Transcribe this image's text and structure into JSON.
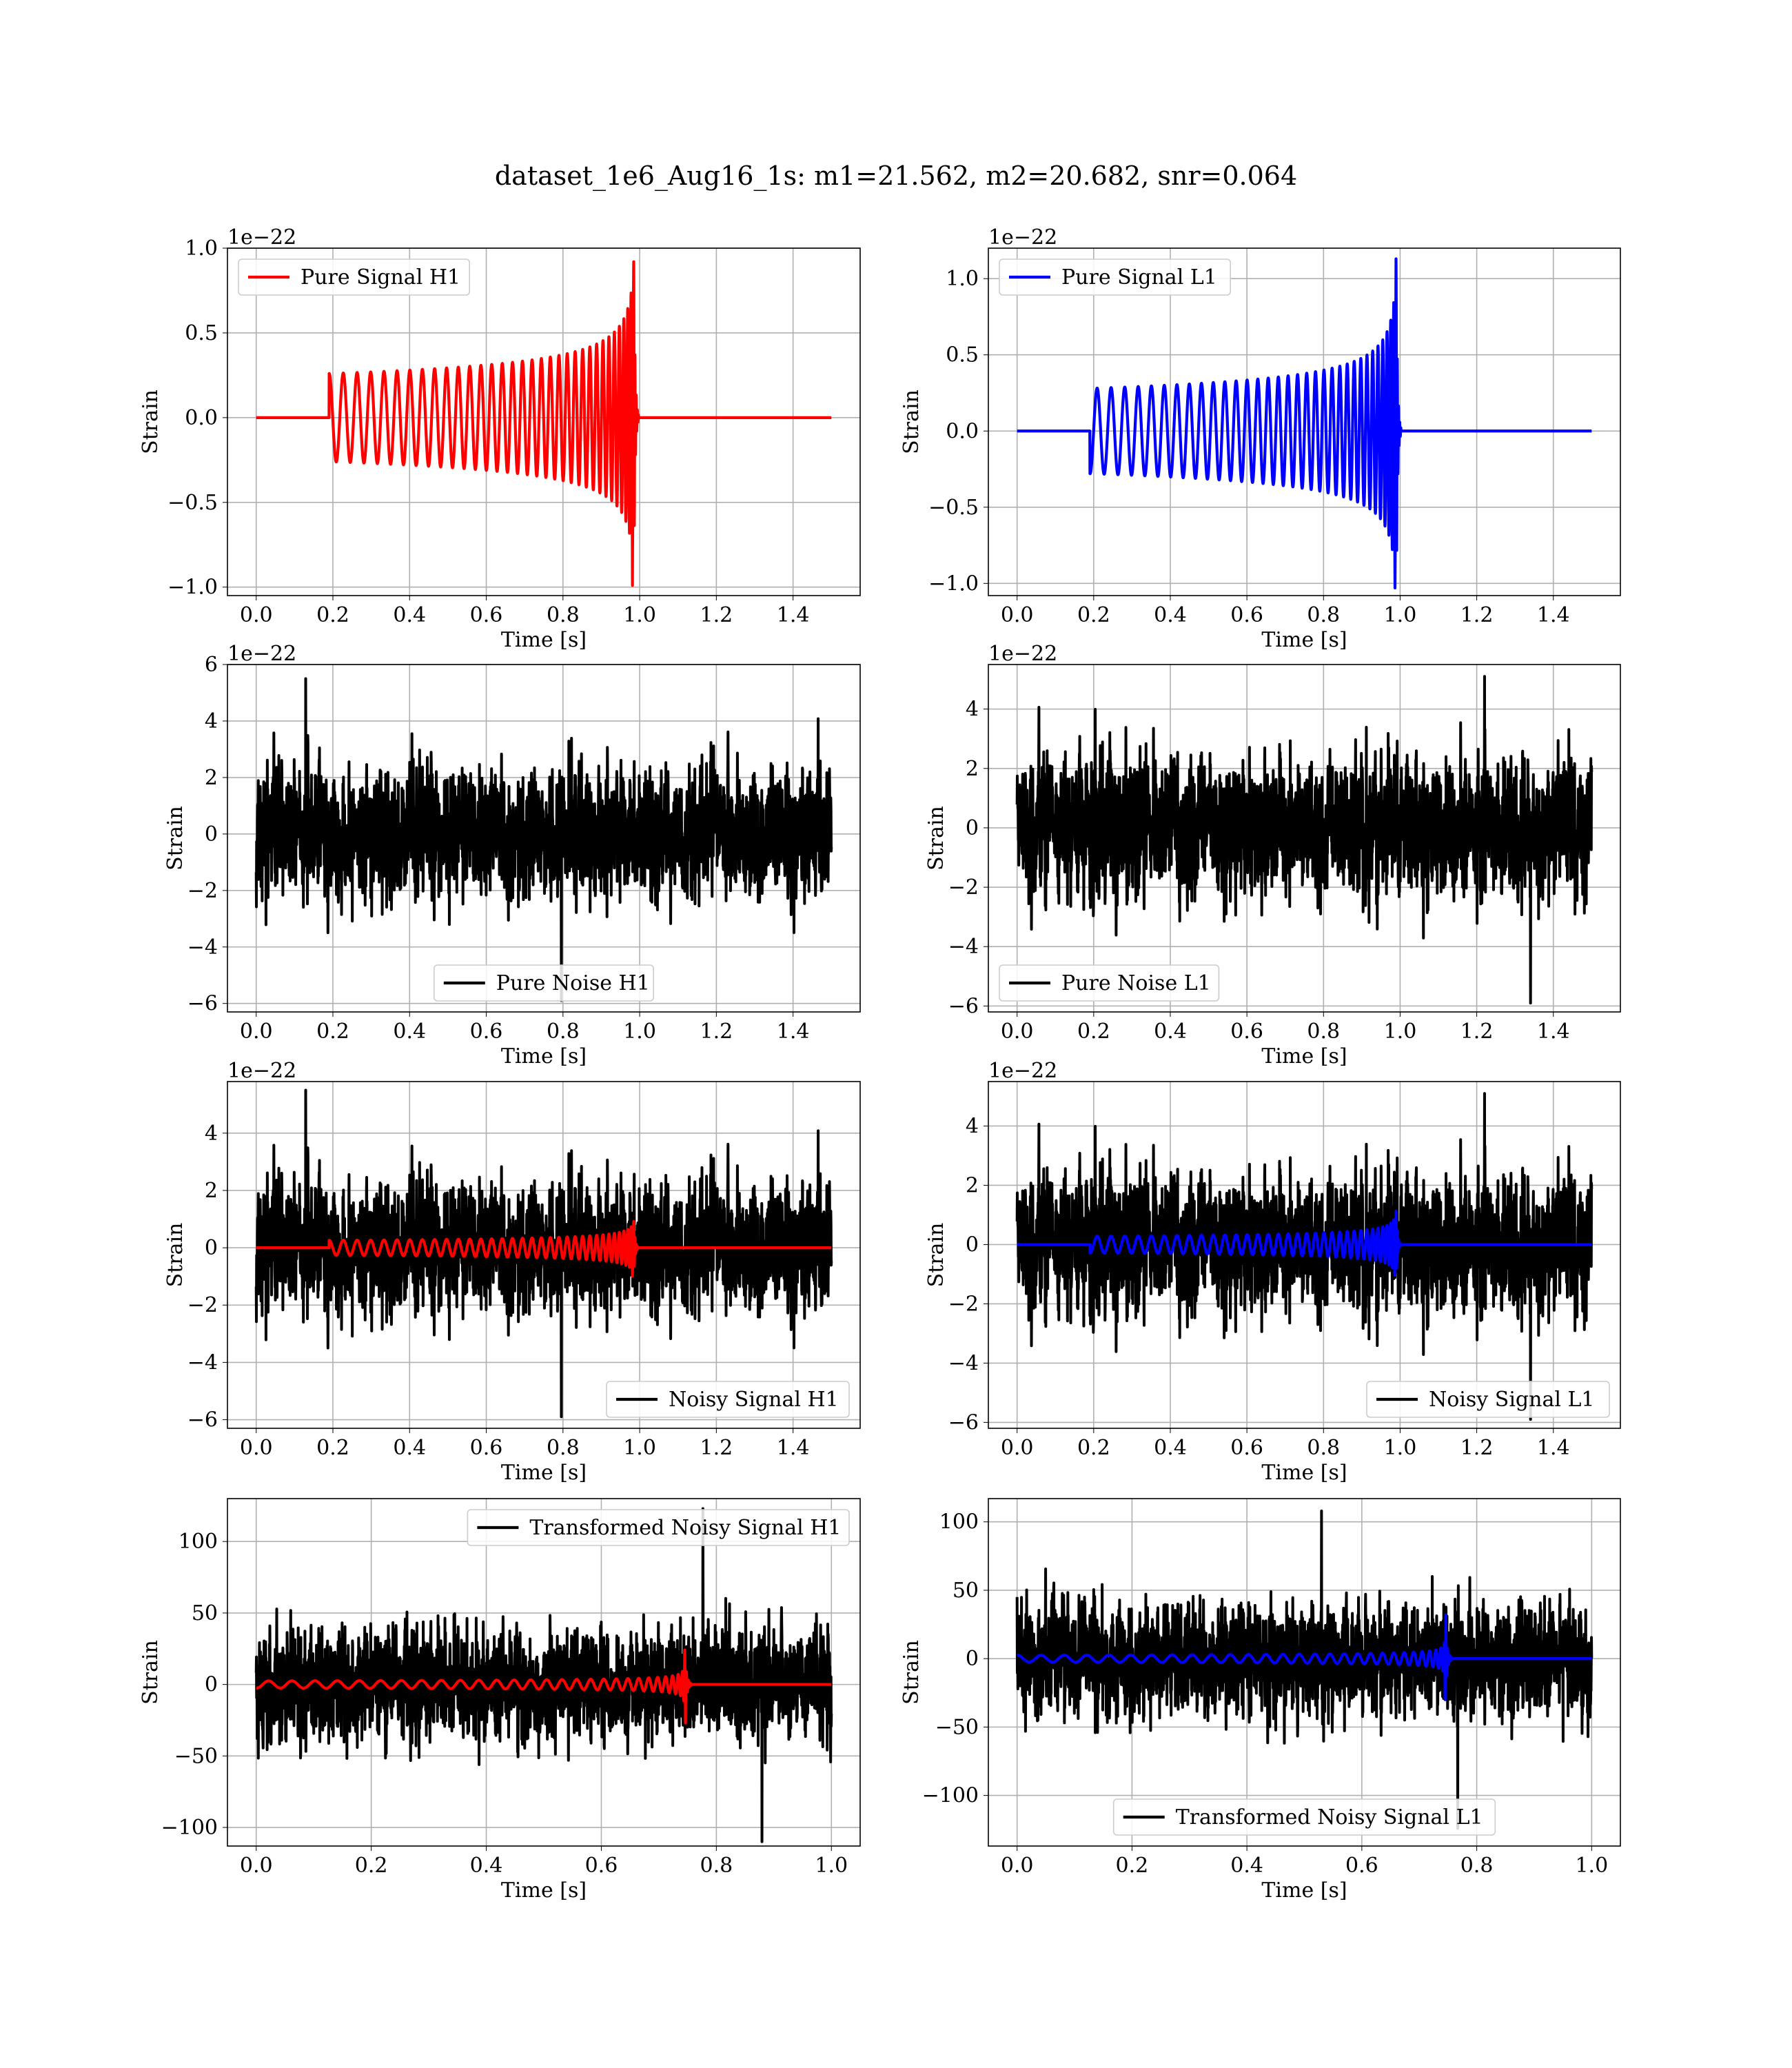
{
  "figure": {
    "title": "dataset_1e6_Aug16_1s: m1=21.562, m2=20.682, snr=0.064"
  },
  "chart_data": [
    {
      "id": "pure_signal_h1",
      "type": "line",
      "xlabel": "Time [s]",
      "ylabel": "Strain",
      "offset_label": "1e−22",
      "xlim": [
        -0.075,
        1.575
      ],
      "ylim": [
        -1.05,
        1.0
      ],
      "xticks": [
        0.0,
        0.2,
        0.4,
        0.6,
        0.8,
        1.0,
        1.2,
        1.4
      ],
      "xtick_labels": [
        "0.0",
        "0.2",
        "0.4",
        "0.6",
        "0.8",
        "1.0",
        "1.2",
        "1.4"
      ],
      "yticks": [
        -1.0,
        -0.5,
        0.0,
        0.5,
        1.0
      ],
      "ytick_labels": [
        "−1.0",
        "−0.5",
        "0.0",
        "0.5",
        "1.0"
      ],
      "grid": true,
      "legend": "upper left",
      "series": [
        {
          "name": "Pure Signal H1",
          "color": "#ff0000",
          "kind": "chirp",
          "duration": 1.5,
          "start": 0.19,
          "merger": 0.985,
          "initial_amplitude": 0.26,
          "peak_amplitude": 0.92,
          "min_value": -0.99,
          "start_frequency": 27,
          "initial_phase": 1.5
        }
      ]
    },
    {
      "id": "pure_signal_l1",
      "type": "line",
      "xlabel": "Time [s]",
      "ylabel": "Strain",
      "offset_label": "1e−22",
      "xlim": [
        -0.075,
        1.575
      ],
      "ylim": [
        -1.08,
        1.2
      ],
      "xticks": [
        0.0,
        0.2,
        0.4,
        0.6,
        0.8,
        1.0,
        1.2,
        1.4
      ],
      "xtick_labels": [
        "0.0",
        "0.2",
        "0.4",
        "0.6",
        "0.8",
        "1.0",
        "1.2",
        "1.4"
      ],
      "yticks": [
        -1.0,
        -0.5,
        0.0,
        0.5,
        1.0
      ],
      "ytick_labels": [
        "−1.0",
        "−0.5",
        "0.0",
        "0.5",
        "1.0"
      ],
      "grid": true,
      "legend": "upper left",
      "series": [
        {
          "name": "Pure Signal L1",
          "color": "#0000ff",
          "kind": "chirp",
          "duration": 1.5,
          "start": 0.19,
          "merger": 0.99,
          "initial_amplitude": 0.28,
          "peak_amplitude": 1.13,
          "min_value": -1.03,
          "start_frequency": 27,
          "initial_phase": 4.6
        }
      ]
    },
    {
      "id": "pure_noise_h1",
      "type": "line",
      "xlabel": "Time [s]",
      "ylabel": "Strain",
      "offset_label": "1e−22",
      "xlim": [
        -0.075,
        1.575
      ],
      "ylim": [
        -6.3,
        6.0
      ],
      "xticks": [
        0.0,
        0.2,
        0.4,
        0.6,
        0.8,
        1.0,
        1.2,
        1.4
      ],
      "xtick_labels": [
        "0.0",
        "0.2",
        "0.4",
        "0.6",
        "0.8",
        "1.0",
        "1.2",
        "1.4"
      ],
      "yticks": [
        -6,
        -4,
        -2,
        0,
        2,
        4,
        6
      ],
      "ytick_labels": [
        "−6",
        "−4",
        "−2",
        "0",
        "2",
        "4",
        "6"
      ],
      "grid": true,
      "legend": "lower center",
      "series": [
        {
          "name": "Pure Noise H1",
          "color": "#000000",
          "kind": "noise",
          "duration": 1.5,
          "seed": 11,
          "scale": 1.6,
          "max_value": 5.5,
          "min_value": -5.9
        }
      ]
    },
    {
      "id": "pure_noise_l1",
      "type": "line",
      "xlabel": "Time [s]",
      "ylabel": "Strain",
      "offset_label": "1e−22",
      "xlim": [
        -0.075,
        1.575
      ],
      "ylim": [
        -6.2,
        5.5
      ],
      "xticks": [
        0.0,
        0.2,
        0.4,
        0.6,
        0.8,
        1.0,
        1.2,
        1.4
      ],
      "xtick_labels": [
        "0.0",
        "0.2",
        "0.4",
        "0.6",
        "0.8",
        "1.0",
        "1.2",
        "1.4"
      ],
      "yticks": [
        -6,
        -4,
        -2,
        0,
        2,
        4
      ],
      "ytick_labels": [
        "−6",
        "−4",
        "−2",
        "0",
        "2",
        "4"
      ],
      "grid": true,
      "legend": "lower left",
      "series": [
        {
          "name": "Pure Noise L1",
          "color": "#000000",
          "kind": "noise",
          "duration": 1.5,
          "seed": 23,
          "scale": 1.6,
          "max_value": 5.1,
          "min_value": -5.9
        }
      ]
    },
    {
      "id": "noisy_signal_h1",
      "type": "line",
      "xlabel": "Time [s]",
      "ylabel": "Strain",
      "offset_label": "1e−22",
      "xlim": [
        -0.075,
        1.575
      ],
      "ylim": [
        -6.3,
        5.8
      ],
      "xticks": [
        0.0,
        0.2,
        0.4,
        0.6,
        0.8,
        1.0,
        1.2,
        1.4
      ],
      "xtick_labels": [
        "0.0",
        "0.2",
        "0.4",
        "0.6",
        "0.8",
        "1.0",
        "1.2",
        "1.4"
      ],
      "yticks": [
        -6,
        -4,
        -2,
        0,
        2,
        4
      ],
      "ytick_labels": [
        "−6",
        "−4",
        "−2",
        "0",
        "2",
        "4"
      ],
      "grid": true,
      "legend": "lower right",
      "series": [
        {
          "name": "Noisy Signal H1",
          "color": "#000000",
          "kind": "noise",
          "duration": 1.5,
          "seed": 11,
          "scale": 1.6,
          "max_value": 5.5,
          "min_value": -5.9
        },
        {
          "color": "#ff0000",
          "kind": "chirp",
          "duration": 1.5,
          "start": 0.19,
          "merger": 0.985,
          "initial_amplitude": 0.26,
          "peak_amplitude": 0.92,
          "min_value": -0.99,
          "start_frequency": 27,
          "initial_phase": 1.5
        }
      ]
    },
    {
      "id": "noisy_signal_l1",
      "type": "line",
      "xlabel": "Time [s]",
      "ylabel": "Strain",
      "offset_label": "1e−22",
      "xlim": [
        -0.075,
        1.575
      ],
      "ylim": [
        -6.2,
        5.5
      ],
      "xticks": [
        0.0,
        0.2,
        0.4,
        0.6,
        0.8,
        1.0,
        1.2,
        1.4
      ],
      "xtick_labels": [
        "0.0",
        "0.2",
        "0.4",
        "0.6",
        "0.8",
        "1.0",
        "1.2",
        "1.4"
      ],
      "yticks": [
        -6,
        -4,
        -2,
        0,
        2,
        4
      ],
      "ytick_labels": [
        "−6",
        "−4",
        "−2",
        "0",
        "2",
        "4"
      ],
      "grid": true,
      "legend": "lower right",
      "series": [
        {
          "name": "Noisy Signal L1",
          "color": "#000000",
          "kind": "noise",
          "duration": 1.5,
          "seed": 23,
          "scale": 1.6,
          "max_value": 5.1,
          "min_value": -5.9
        },
        {
          "color": "#0000ff",
          "kind": "chirp",
          "duration": 1.5,
          "start": 0.19,
          "merger": 0.99,
          "initial_amplitude": 0.28,
          "peak_amplitude": 1.13,
          "min_value": -1.03,
          "start_frequency": 27,
          "initial_phase": 4.6
        }
      ]
    },
    {
      "id": "transformed_noisy_signal_h1",
      "type": "line",
      "xlabel": "Time [s]",
      "ylabel": "Strain",
      "offset_label": "",
      "xlim": [
        -0.05,
        1.05
      ],
      "ylim": [
        -113,
        130
      ],
      "xticks": [
        0.0,
        0.2,
        0.4,
        0.6,
        0.8,
        1.0
      ],
      "xtick_labels": [
        "0.0",
        "0.2",
        "0.4",
        "0.6",
        "0.8",
        "1.0"
      ],
      "yticks": [
        -100,
        -50,
        0,
        50,
        100
      ],
      "ytick_labels": [
        "−100",
        "−50",
        "0",
        "50",
        "100"
      ],
      "grid": true,
      "legend": "upper right",
      "series": [
        {
          "name": "Transformed Noisy Signal H1",
          "color": "#000000",
          "kind": "noise",
          "duration": 1.0,
          "seed": 37,
          "scale": 28,
          "max_value": 123,
          "min_value": -110
        },
        {
          "color": "#ff0000",
          "kind": "chirp",
          "duration": 1.0,
          "start": 0.0,
          "merger": 0.745,
          "initial_amplitude": 2.5,
          "peak_amplitude": 24,
          "min_value": -27,
          "start_frequency": 24,
          "initial_phase": 4.6
        }
      ]
    },
    {
      "id": "transformed_noisy_signal_l1",
      "type": "line",
      "xlabel": "Time [s]",
      "ylabel": "Strain",
      "offset_label": "",
      "xlim": [
        -0.05,
        1.05
      ],
      "ylim": [
        -137,
        117
      ],
      "xticks": [
        0.0,
        0.2,
        0.4,
        0.6,
        0.8,
        1.0
      ],
      "xtick_labels": [
        "0.0",
        "0.2",
        "0.4",
        "0.6",
        "0.8",
        "1.0"
      ],
      "yticks": [
        -100,
        -50,
        0,
        50,
        100
      ],
      "ytick_labels": [
        "−100",
        "−50",
        "0",
        "50",
        "100"
      ],
      "grid": true,
      "legend": "lower center",
      "series": [
        {
          "name": "Transformed Noisy Signal L1",
          "color": "#000000",
          "kind": "noise",
          "duration": 1.0,
          "seed": 53,
          "scale": 28,
          "max_value": 108,
          "min_value": -124
        },
        {
          "color": "#0000ff",
          "kind": "chirp",
          "duration": 1.0,
          "start": 0.0,
          "merger": 0.745,
          "initial_amplitude": 2.5,
          "peak_amplitude": 32,
          "min_value": -30,
          "start_frequency": 24,
          "initial_phase": 1.5
        }
      ]
    }
  ]
}
